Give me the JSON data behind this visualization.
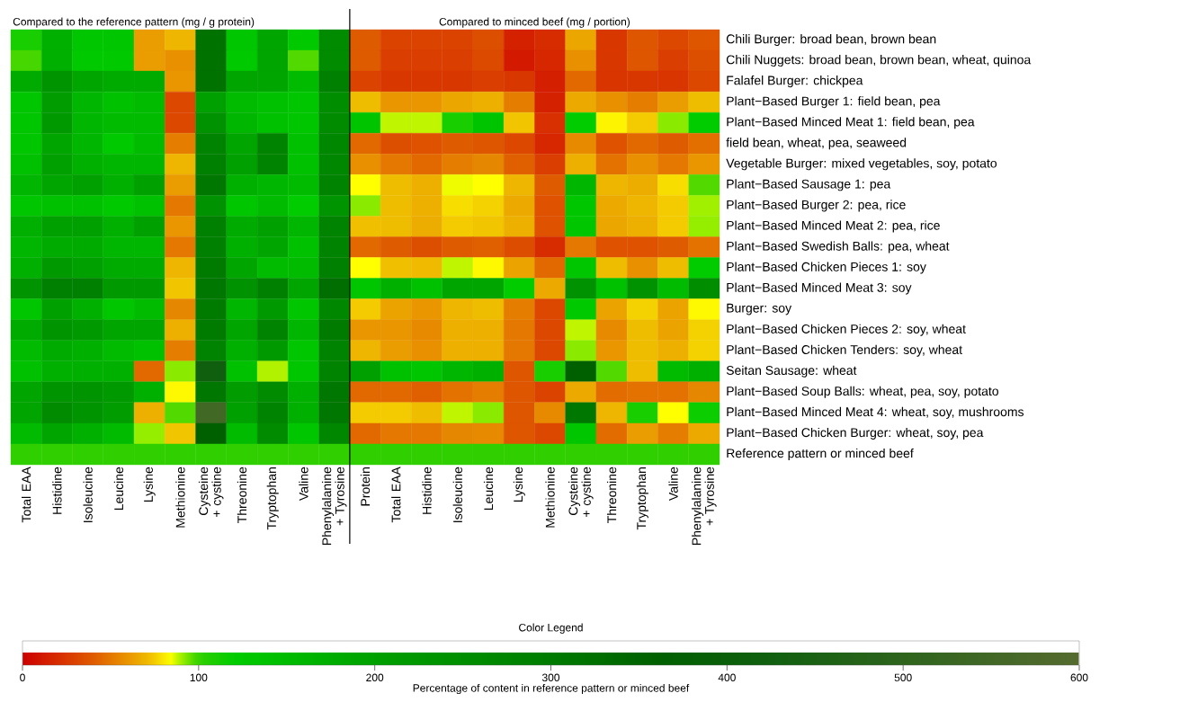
{
  "chart_data": {
    "type": "heatmap",
    "annotations": [
      "Compared to the reference pattern (mg / g protein)",
      "Compared to minced beef (mg / portion)"
    ],
    "legend_title": "Color Legend",
    "clabel": "Percentage of content in reference pattern or minced beef",
    "clim": [
      0,
      600
    ],
    "cticks": [
      0,
      100,
      200,
      300,
      400,
      500,
      600
    ],
    "categories": [
      "Total EAA",
      "Histidine",
      "Isoleucine",
      "Leucine",
      "Lysine",
      "Methionine",
      "Cysteine + cystine",
      "Threonine",
      "Tryptophan",
      "Valine",
      "Phenylalanine + Tyrosine",
      "Protein",
      "Total EAA",
      "Histidine",
      "Isoleucine",
      "Leucine",
      "Lysine",
      "Methionine",
      "Cysteine + cystine",
      "Threonine",
      "Tryptophan",
      "Valine",
      "Phenylalanine + Tyrosine"
    ],
    "y_categories": [
      "Chili Burger: broad bean, brown bean",
      "Chili Nuggets: broad bean, brown bean, wheat, quinoa",
      "Falafel Burger: chickpea",
      "Plant−Based Burger 1: field bean, pea",
      "Plant−Based Minced Meat 1: field bean, pea",
      "field bean, wheat, pea, seaweed",
      "Vegetable Burger: mixed vegetables, soy, potato",
      "Plant−Based Sausage 1: pea",
      "Plant−Based Burger 2: pea, rice",
      "Plant−Based Minced Meat 2: pea, rice",
      "Plant−Based Swedish Balls: pea, wheat",
      "Plant−Based Chicken Pieces 1: soy",
      "Plant−Based Minced Meat 3: soy",
      "Burger: soy",
      "Plant−Based Chicken Pieces 2: soy, wheat",
      "Plant−Based Chicken Tenders: soy, wheat",
      "Seitan Sausage: wheat",
      "Plant−Based Soup Balls: wheat, pea, soy, potato",
      "Plant−Based Minced Meat 4: wheat, soy, mushrooms",
      "Plant−Based Chicken Burger: wheat, soy, pea",
      "Reference pattern or minced beef"
    ],
    "cells": [
      [
        110,
        170,
        130,
        130,
        62,
        70,
        320,
        130,
        190,
        125,
        260,
        40,
        30,
        30,
        30,
        35,
        15,
        20,
        65,
        25,
        38,
        32,
        38
      ],
      [
        98,
        170,
        125,
        125,
        62,
        58,
        320,
        125,
        190,
        97,
        260,
        40,
        28,
        28,
        28,
        33,
        12,
        18,
        58,
        25,
        38,
        28,
        35
      ],
      [
        180,
        230,
        190,
        180,
        180,
        60,
        320,
        190,
        190,
        150,
        290,
        30,
        25,
        25,
        25,
        28,
        25,
        14,
        45,
        24,
        25,
        24,
        32
      ],
      [
        130,
        210,
        160,
        140,
        150,
        32,
        200,
        150,
        140,
        130,
        250,
        72,
        60,
        60,
        65,
        68,
        52,
        15,
        66,
        58,
        52,
        62,
        72
      ],
      [
        130,
        220,
        160,
        150,
        150,
        32,
        240,
        160,
        140,
        130,
        260,
        135,
        88,
        88,
        110,
        135,
        74,
        22,
        120,
        82,
        75,
        92,
        120
      ],
      [
        130,
        190,
        160,
        125,
        150,
        52,
        280,
        190,
        280,
        140,
        270,
        45,
        35,
        36,
        40,
        38,
        32,
        18,
        56,
        36,
        45,
        40,
        47
      ],
      [
        140,
        200,
        170,
        160,
        160,
        70,
        290,
        200,
        280,
        140,
        270,
        58,
        50,
        45,
        52,
        55,
        42,
        28,
        68,
        48,
        58,
        50,
        60
      ],
      [
        160,
        190,
        200,
        170,
        200,
        62,
        310,
        170,
        160,
        150,
        280,
        84,
        72,
        68,
        85,
        84,
        70,
        40,
        160,
        70,
        67,
        78,
        97
      ],
      [
        130,
        140,
        140,
        125,
        140,
        50,
        240,
        130,
        150,
        120,
        230,
        92,
        72,
        68,
        78,
        76,
        66,
        36,
        130,
        66,
        70,
        75,
        90
      ],
      [
        170,
        200,
        200,
        170,
        200,
        60,
        290,
        180,
        200,
        160,
        280,
        73,
        72,
        67,
        75,
        74,
        68,
        36,
        130,
        65,
        68,
        75,
        91
      ],
      [
        160,
        180,
        180,
        160,
        160,
        50,
        290,
        170,
        190,
        140,
        280,
        45,
        40,
        35,
        40,
        42,
        34,
        20,
        50,
        36,
        36,
        40,
        48
      ],
      [
        170,
        220,
        200,
        180,
        180,
        70,
        300,
        190,
        150,
        150,
        290,
        84,
        73,
        71,
        88,
        83,
        64,
        45,
        130,
        72,
        58,
        72,
        120
      ],
      [
        230,
        290,
        290,
        220,
        220,
        74,
        310,
        240,
        290,
        190,
        330,
        130,
        170,
        140,
        190,
        190,
        120,
        66,
        240,
        140,
        240,
        150,
        250
      ],
      [
        130,
        200,
        170,
        130,
        150,
        55,
        300,
        160,
        220,
        130,
        270,
        75,
        64,
        60,
        70,
        72,
        52,
        32,
        125,
        64,
        76,
        64,
        83
      ],
      [
        180,
        230,
        220,
        190,
        190,
        68,
        300,
        190,
        280,
        160,
        300,
        60,
        60,
        56,
        68,
        68,
        50,
        32,
        88,
        56,
        72,
        64,
        76
      ],
      [
        150,
        180,
        170,
        150,
        140,
        52,
        280,
        170,
        220,
        130,
        280,
        70,
        62,
        58,
        68,
        68,
        50,
        32,
        92,
        60,
        72,
        68,
        76
      ],
      [
        140,
        170,
        170,
        170,
        45,
        92,
        420,
        140,
        89,
        130,
        280,
        200,
        140,
        130,
        160,
        170,
        38,
        110,
        360,
        97,
        72,
        150,
        170
      ],
      [
        190,
        230,
        230,
        220,
        170,
        83,
        310,
        210,
        260,
        170,
        310,
        45,
        45,
        42,
        48,
        52,
        38,
        30,
        66,
        46,
        48,
        48,
        55
      ],
      [
        190,
        260,
        230,
        210,
        68,
        97,
        550,
        200,
        280,
        170,
        310,
        75,
        75,
        72,
        88,
        92,
        38,
        56,
        310,
        70,
        110,
        84,
        115
      ],
      [
        150,
        190,
        170,
        150,
        91,
        74,
        360,
        150,
        260,
        130,
        270,
        45,
        50,
        50,
        55,
        56,
        38,
        32,
        130,
        46,
        62,
        52,
        66
      ],
      [
        100,
        100,
        100,
        100,
        100,
        100,
        100,
        100,
        100,
        100,
        100,
        100,
        100,
        100,
        100,
        100,
        100,
        100,
        100,
        100,
        100,
        100,
        100
      ]
    ]
  }
}
